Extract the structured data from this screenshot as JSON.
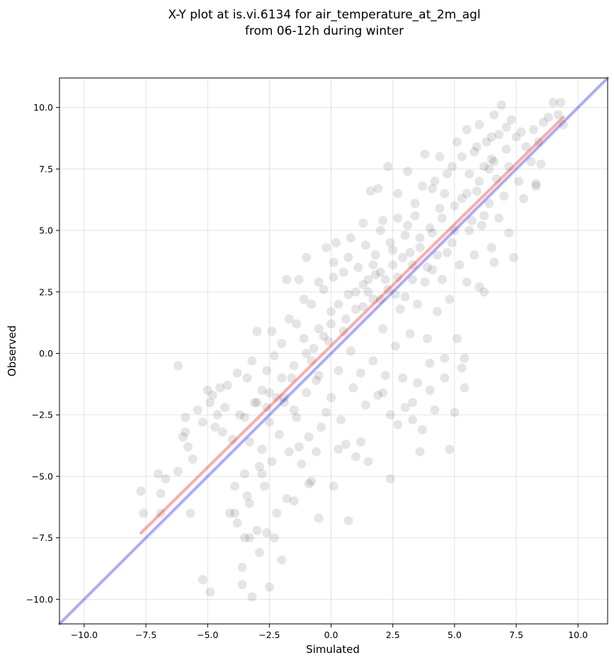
{
  "chart_data": {
    "type": "scatter",
    "title_line1": "X-Y plot at is.vi.6134 for air_temperature_at_2m_agl",
    "title_line2": "from 06-12h during winter",
    "xlabel": "Simulated",
    "ylabel": "Observed",
    "xlim": [
      -11.0,
      11.2
    ],
    "ylim": [
      -11.0,
      11.2
    ],
    "xticks": [
      -10.0,
      -7.5,
      -5.0,
      -2.5,
      0.0,
      2.5,
      5.0,
      7.5,
      10.0
    ],
    "yticks": [
      -10.0,
      -7.5,
      -5.0,
      -2.5,
      0.0,
      2.5,
      5.0,
      7.5,
      10.0
    ],
    "xtick_labels": [
      "−10.0",
      "−7.5",
      "−5.0",
      "−2.5",
      "0.0",
      "2.5",
      "5.0",
      "7.5",
      "10.0"
    ],
    "ytick_labels": [
      "−10.0",
      "−7.5",
      "−5.0",
      "−2.5",
      "0.0",
      "2.5",
      "5.0",
      "7.5",
      "10.0"
    ],
    "grid": true,
    "point_color": "#000000",
    "point_alpha": 0.1,
    "lines": [
      {
        "role": "one-to-one",
        "color": "#0000ff",
        "alpha": 0.33,
        "x": [
          -11.0,
          11.2
        ],
        "y": [
          -11.0,
          11.2
        ]
      },
      {
        "role": "regression",
        "color": "#ff0000",
        "alpha": 0.33,
        "x": [
          -7.7,
          9.4
        ],
        "y": [
          -7.3,
          9.6
        ]
      }
    ],
    "points": [
      [
        -7.7,
        -5.6
      ],
      [
        -7.6,
        -6.5
      ],
      [
        -7.0,
        -4.9
      ],
      [
        -6.9,
        -5.7
      ],
      [
        -6.9,
        -6.5
      ],
      [
        -6.7,
        -5.1
      ],
      [
        -6.2,
        -0.5
      ],
      [
        -6.2,
        -4.8
      ],
      [
        -6.0,
        -3.4
      ],
      [
        -5.9,
        -3.2
      ],
      [
        -5.9,
        -2.6
      ],
      [
        -5.8,
        -3.8
      ],
      [
        -5.7,
        -6.5
      ],
      [
        -5.6,
        -4.3
      ],
      [
        -5.4,
        -2.3
      ],
      [
        -5.2,
        -2.8
      ],
      [
        -5.2,
        -9.2
      ],
      [
        -4.9,
        -9.7
      ],
      [
        -5.0,
        -1.5
      ],
      [
        -4.9,
        -2.0
      ],
      [
        -4.8,
        -1.7
      ],
      [
        -4.7,
        -3.0
      ],
      [
        -4.6,
        -2.5
      ],
      [
        -4.4,
        -3.2
      ],
      [
        -4.3,
        -2.2
      ],
      [
        -4.2,
        -1.3
      ],
      [
        -4.0,
        -3.5
      ],
      [
        -3.9,
        -6.5
      ],
      [
        -3.9,
        -5.4
      ],
      [
        -3.8,
        -6.9
      ],
      [
        -3.7,
        -2.5
      ],
      [
        -3.6,
        -8.7
      ],
      [
        -3.5,
        -7.5
      ],
      [
        -3.5,
        -4.9
      ],
      [
        -3.4,
        -1.0
      ],
      [
        -3.3,
        -3.6
      ],
      [
        -3.3,
        -6.1
      ],
      [
        -3.2,
        -9.9
      ],
      [
        -3.1,
        -2.0
      ],
      [
        -3.0,
        0.9
      ],
      [
        -3.0,
        -7.2
      ],
      [
        -2.9,
        -4.6
      ],
      [
        -2.8,
        -1.5
      ],
      [
        -2.8,
        -3.9
      ],
      [
        -2.7,
        -5.4
      ],
      [
        -2.6,
        -0.7
      ],
      [
        -2.6,
        -7.3
      ],
      [
        -2.5,
        -9.5
      ],
      [
        -2.5,
        -2.8
      ],
      [
        -2.4,
        -4.4
      ],
      [
        -2.3,
        -0.1
      ],
      [
        -2.2,
        -1.8
      ],
      [
        -2.2,
        -6.5
      ],
      [
        -2.1,
        -3.3
      ],
      [
        -2.0,
        0.4
      ],
      [
        -2.0,
        -8.4
      ],
      [
        -1.9,
        -2.0
      ],
      [
        -1.8,
        3.0
      ],
      [
        -1.7,
        -4.0
      ],
      [
        -1.6,
        -1.0
      ],
      [
        -1.5,
        -6.0
      ],
      [
        -1.4,
        1.2
      ],
      [
        -1.4,
        -2.6
      ],
      [
        -1.3,
        3.0
      ],
      [
        -1.2,
        -4.5
      ],
      [
        -1.1,
        0.6
      ],
      [
        -1.0,
        -1.6
      ],
      [
        -1.0,
        3.9
      ],
      [
        -0.9,
        -3.4
      ],
      [
        -0.8,
        2.0
      ],
      [
        -0.8,
        -5.2
      ],
      [
        -0.7,
        0.2
      ],
      [
        -0.6,
        -1.1
      ],
      [
        -0.5,
        1.0
      ],
      [
        -0.5,
        -6.7
      ],
      [
        -0.4,
        -3.0
      ],
      [
        -0.3,
        2.6
      ],
      [
        -0.2,
        -2.4
      ],
      [
        -0.2,
        4.3
      ],
      [
        -0.1,
        0.5
      ],
      [
        0.0,
        -1.8
      ],
      [
        0.0,
        1.7
      ],
      [
        0.1,
        3.1
      ],
      [
        0.1,
        -5.4
      ],
      [
        0.2,
        4.5
      ],
      [
        0.3,
        -0.7
      ],
      [
        0.3,
        2.0
      ],
      [
        0.4,
        -2.7
      ],
      [
        0.5,
        3.3
      ],
      [
        0.6,
        -3.7
      ],
      [
        0.6,
        1.4
      ],
      [
        0.7,
        -6.8
      ],
      [
        0.8,
        0.1
      ],
      [
        0.8,
        4.7
      ],
      [
        0.9,
        -1.4
      ],
      [
        1.0,
        2.5
      ],
      [
        1.0,
        -4.2
      ],
      [
        1.1,
        3.5
      ],
      [
        1.2,
        -0.8
      ],
      [
        1.3,
        1.9
      ],
      [
        1.3,
        5.3
      ],
      [
        1.4,
        -2.1
      ],
      [
        1.5,
        3.0
      ],
      [
        1.5,
        -4.4
      ],
      [
        1.6,
        6.6
      ],
      [
        1.7,
        2.2
      ],
      [
        1.7,
        -0.3
      ],
      [
        1.8,
        4.0
      ],
      [
        1.9,
        6.7
      ],
      [
        1.9,
        -1.7
      ],
      [
        2.0,
        3.3
      ],
      [
        2.1,
        1.0
      ],
      [
        2.1,
        5.4
      ],
      [
        2.2,
        -0.9
      ],
      [
        2.3,
        2.6
      ],
      [
        2.3,
        7.6
      ],
      [
        2.4,
        -2.5
      ],
      [
        2.4,
        -5.1
      ],
      [
        2.5,
        4.2
      ],
      [
        2.6,
        0.3
      ],
      [
        2.7,
        3.1
      ],
      [
        2.7,
        6.5
      ],
      [
        2.8,
        1.8
      ],
      [
        2.9,
        -1.0
      ],
      [
        3.0,
        4.8
      ],
      [
        3.0,
        2.3
      ],
      [
        3.1,
        7.4
      ],
      [
        3.2,
        0.8
      ],
      [
        3.3,
        3.6
      ],
      [
        3.3,
        -2.0
      ],
      [
        3.4,
        5.6
      ],
      [
        3.5,
        2.0
      ],
      [
        3.5,
        -1.2
      ],
      [
        3.6,
        4.3
      ],
      [
        3.6,
        -4.0
      ],
      [
        3.7,
        6.8
      ],
      [
        3.8,
        2.9
      ],
      [
        3.8,
        8.1
      ],
      [
        3.9,
        0.6
      ],
      [
        4.0,
        5.1
      ],
      [
        4.0,
        -1.5
      ],
      [
        4.1,
        3.4
      ],
      [
        4.2,
        7.0
      ],
      [
        4.2,
        -2.3
      ],
      [
        4.3,
        1.7
      ],
      [
        4.4,
        5.9
      ],
      [
        4.4,
        8.0
      ],
      [
        4.5,
        3.0
      ],
      [
        4.6,
        -0.2
      ],
      [
        4.6,
        6.5
      ],
      [
        4.7,
        4.1
      ],
      [
        4.8,
        -3.9
      ],
      [
        4.8,
        2.2
      ],
      [
        4.9,
        7.6
      ],
      [
        5.0,
        5.0
      ],
      [
        5.1,
        0.6
      ],
      [
        5.1,
        8.6
      ],
      [
        5.2,
        3.6
      ],
      [
        5.3,
        6.3
      ],
      [
        5.4,
        -0.2
      ],
      [
        5.5,
        9.1
      ],
      [
        5.5,
        2.9
      ],
      [
        5.6,
        7.3
      ],
      [
        5.7,
        5.4
      ],
      [
        5.8,
        4.0
      ],
      [
        5.8,
        8.2
      ],
      [
        5.9,
        6.6
      ],
      [
        6.0,
        2.7
      ],
      [
        6.0,
        9.3
      ],
      [
        6.1,
        5.2
      ],
      [
        6.2,
        7.6
      ],
      [
        6.2,
        2.5
      ],
      [
        6.3,
        8.6
      ],
      [
        6.4,
        6.1
      ],
      [
        6.5,
        4.3
      ],
      [
        6.5,
        7.9
      ],
      [
        6.6,
        9.7
      ],
      [
        6.6,
        3.7
      ],
      [
        6.7,
        7.1
      ],
      [
        6.8,
        5.5
      ],
      [
        6.8,
        8.9
      ],
      [
        6.9,
        10.1
      ],
      [
        7.0,
        6.4
      ],
      [
        7.1,
        8.3
      ],
      [
        7.2,
        4.9
      ],
      [
        7.2,
        7.6
      ],
      [
        7.3,
        9.5
      ],
      [
        7.4,
        3.9
      ],
      [
        7.5,
        8.8
      ],
      [
        7.6,
        7.0
      ],
      [
        7.7,
        9.0
      ],
      [
        7.8,
        6.3
      ],
      [
        7.9,
        8.4
      ],
      [
        8.1,
        7.8
      ],
      [
        8.2,
        9.1
      ],
      [
        8.3,
        6.9
      ],
      [
        8.4,
        8.6
      ],
      [
        8.5,
        7.7
      ],
      [
        8.6,
        9.4
      ],
      [
        8.8,
        9.6
      ],
      [
        9.0,
        10.2
      ],
      [
        9.2,
        9.7
      ],
      [
        9.3,
        10.2
      ],
      [
        9.4,
        9.3
      ],
      [
        8.3,
        6.8
      ],
      [
        5.3,
        -0.6
      ],
      [
        5.4,
        -1.4
      ],
      [
        5.0,
        -2.4
      ],
      [
        3.0,
        -2.2
      ],
      [
        2.7,
        -2.9
      ],
      [
        3.3,
        -2.7
      ],
      [
        3.7,
        -3.1
      ],
      [
        4.6,
        -1.0
      ],
      [
        4.0,
        -0.4
      ],
      [
        2.1,
        -1.6
      ],
      [
        1.2,
        -3.6
      ],
      [
        0.3,
        -3.9
      ],
      [
        -0.6,
        -4.0
      ],
      [
        -1.3,
        -3.8
      ],
      [
        -2.8,
        -4.9
      ],
      [
        -3.4,
        -5.8
      ],
      [
        -2.9,
        -8.1
      ],
      [
        -3.6,
        -9.4
      ],
      [
        -4.1,
        -6.5
      ],
      [
        -3.3,
        -7.5
      ],
      [
        -2.3,
        -7.5
      ],
      [
        -1.8,
        -5.9
      ],
      [
        -0.9,
        -5.3
      ],
      [
        -1.5,
        -2.3
      ],
      [
        -0.5,
        -0.9
      ],
      [
        0.5,
        0.9
      ],
      [
        1.0,
        1.8
      ],
      [
        1.5,
        2.5
      ],
      [
        1.8,
        3.2
      ],
      [
        2.2,
        3.0
      ],
      [
        2.5,
        3.6
      ],
      [
        2.9,
        3.9
      ],
      [
        3.2,
        4.1
      ],
      [
        3.6,
        4.7
      ],
      [
        4.1,
        4.9
      ],
      [
        4.5,
        5.5
      ],
      [
        5.0,
        6.0
      ],
      [
        5.5,
        6.5
      ],
      [
        6.0,
        7.0
      ],
      [
        6.4,
        7.5
      ],
      [
        6.6,
        7.8
      ],
      [
        0.0,
        1.2
      ],
      [
        -0.3,
        0.7
      ],
      [
        -1.0,
        0.0
      ],
      [
        -1.5,
        -0.5
      ],
      [
        -2.0,
        -1.0
      ],
      [
        -2.5,
        -1.6
      ],
      [
        -3.0,
        -2.0
      ],
      [
        -3.5,
        -2.6
      ],
      [
        1.7,
        3.6
      ],
      [
        2.4,
        4.5
      ],
      [
        3.1,
        5.2
      ],
      [
        1.3,
        2.8
      ],
      [
        0.7,
        2.4
      ],
      [
        2.0,
        2.2
      ],
      [
        2.6,
        2.4
      ],
      [
        3.3,
        3.0
      ],
      [
        3.9,
        3.5
      ],
      [
        4.3,
        4.0
      ],
      [
        4.9,
        4.5
      ],
      [
        5.6,
        5.0
      ],
      [
        6.2,
        5.6
      ],
      [
        -0.8,
        -0.3
      ],
      [
        -1.9,
        -1.8
      ],
      [
        -2.6,
        -2.2
      ],
      [
        -4.5,
        -1.4
      ],
      [
        -3.8,
        -0.8
      ],
      [
        -3.2,
        -0.3
      ],
      [
        -2.4,
        0.9
      ],
      [
        -1.7,
        1.4
      ],
      [
        -1.1,
        2.2
      ],
      [
        -0.5,
        2.9
      ],
      [
        0.1,
        3.7
      ],
      [
        0.7,
        3.9
      ],
      [
        1.4,
        4.4
      ],
      [
        2.0,
        5.0
      ],
      [
        2.7,
        5.5
      ],
      [
        3.4,
        6.1
      ],
      [
        4.1,
        6.7
      ],
      [
        4.7,
        7.3
      ],
      [
        5.3,
        8.0
      ],
      [
        5.9,
        8.4
      ],
      [
        6.5,
        8.8
      ],
      [
        7.1,
        9.2
      ]
    ]
  }
}
